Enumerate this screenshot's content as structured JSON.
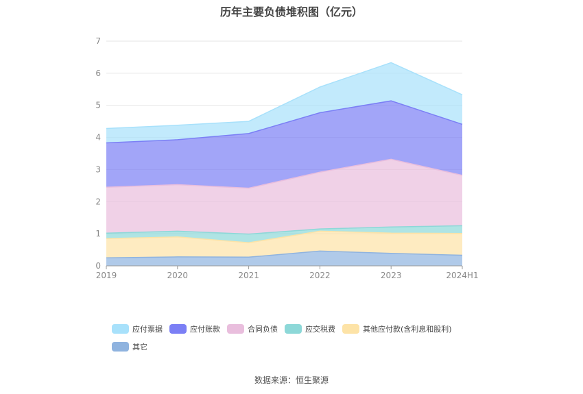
{
  "title": "历年主要负债堆积图（亿元）",
  "source": "数据来源：恒生聚源",
  "chart_data": {
    "type": "area",
    "stacked": true,
    "categories": [
      "2019",
      "2020",
      "2021",
      "2022",
      "2023",
      "2024H1"
    ],
    "ylim": [
      0,
      7
    ],
    "yticks": [
      0,
      1,
      2,
      3,
      4,
      5,
      6,
      7
    ],
    "grid": true,
    "legend_position": "bottom",
    "series": [
      {
        "name": "其它",
        "color": "#8fb3df",
        "values": [
          0.25,
          0.28,
          0.27,
          0.46,
          0.39,
          0.33
        ]
      },
      {
        "name": "其他应付款(含利息和股利)",
        "color": "#fde3a7",
        "values": [
          0.6,
          0.62,
          0.45,
          0.62,
          0.63,
          0.68
        ]
      },
      {
        "name": "应交税费",
        "color": "#8dd8d8",
        "values": [
          0.17,
          0.18,
          0.27,
          0.07,
          0.19,
          0.24
        ]
      },
      {
        "name": "合同负债",
        "color": "#e9bedd",
        "values": [
          1.43,
          1.45,
          1.43,
          1.77,
          2.11,
          1.57
        ]
      },
      {
        "name": "应付账款",
        "color": "#7b7ff5",
        "values": [
          1.38,
          1.4,
          1.7,
          1.85,
          1.82,
          1.59
        ]
      },
      {
        "name": "应付票据",
        "color": "#a8e1fb",
        "values": [
          0.45,
          0.45,
          0.38,
          0.8,
          1.19,
          0.92
        ]
      }
    ]
  }
}
